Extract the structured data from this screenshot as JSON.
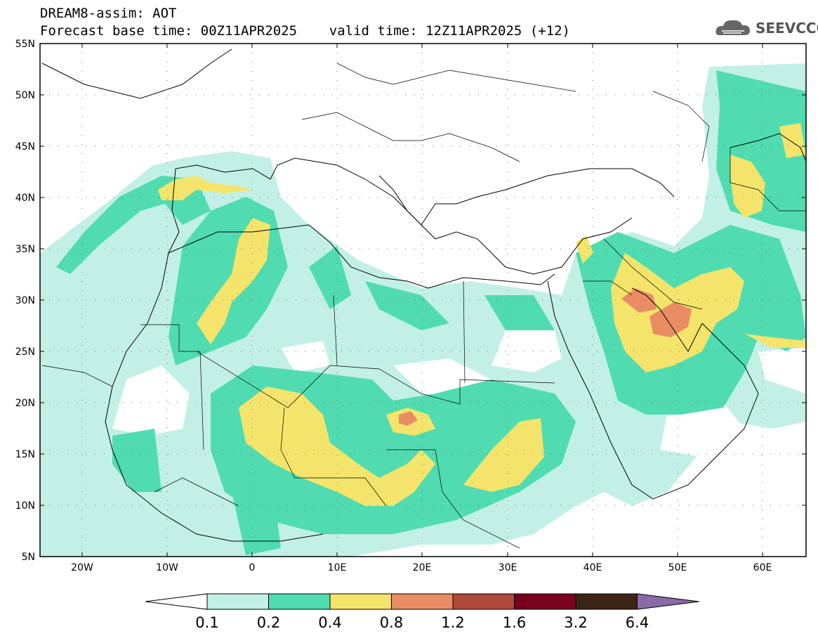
{
  "title": {
    "line1": "DREAM8-assim: AOT",
    "line2": "Forecast base time: 00Z11APR2025    valid time: 12Z11APR2025 (+12)"
  },
  "logo": {
    "text": "SEEVCCC",
    "icon": "cloud-icon"
  },
  "axes": {
    "lat_labels": [
      "55N",
      "50N",
      "45N",
      "40N",
      "35N",
      "30N",
      "25N",
      "20N",
      "15N",
      "10N",
      "5N"
    ],
    "lon_labels": [
      "20W",
      "10W",
      "0",
      "10E",
      "20E",
      "30E",
      "40E",
      "50E",
      "60E"
    ]
  },
  "colorbar": {
    "levels": [
      "0.1",
      "0.2",
      "0.4",
      "0.8",
      "1.2",
      "1.6",
      "3.2",
      "6.4"
    ],
    "colors": [
      "#ffffff",
      "#c2f0e6",
      "#50dcb0",
      "#f4e46c",
      "#e98c64",
      "#b04a38",
      "#7a0020",
      "#3c2414",
      "#8a6aa8"
    ]
  },
  "map": {
    "region": "North Africa, Mediterranean, Middle East",
    "lon_range": [
      -25,
      65
    ],
    "lat_range": [
      5,
      55
    ]
  }
}
